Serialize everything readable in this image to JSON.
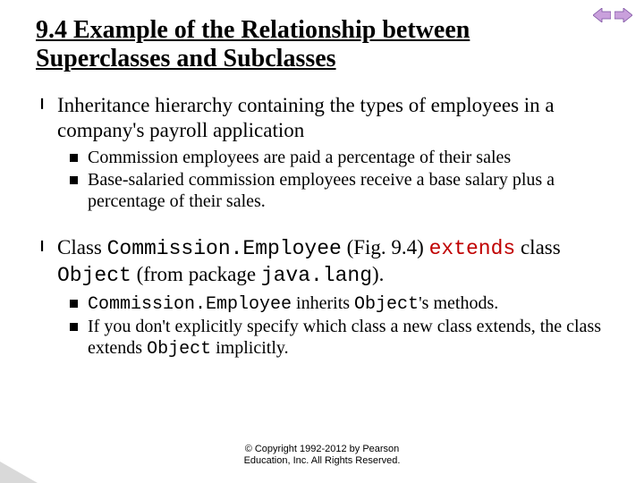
{
  "title": "9.4 Example of the Relationship between Superclasses and Subclasses",
  "items": [
    {
      "text_parts": [
        {
          "t": "Inheritance hierarchy containing the types of employees in a company's payroll application",
          "s": "n"
        }
      ],
      "subs": [
        {
          "parts": [
            {
              "t": "Commission employees are paid a percentage of their sales",
              "s": "n"
            }
          ]
        },
        {
          "parts": [
            {
              "t": "Base-salaried commission employees receive a base salary plus a percentage of their sales.",
              "s": "n"
            }
          ]
        }
      ]
    },
    {
      "text_parts": [
        {
          "t": "Class ",
          "s": "n"
        },
        {
          "t": "Commission.Employee",
          "s": "c"
        },
        {
          "t": " (Fig. 9.4) ",
          "s": "n"
        },
        {
          "t": "extends",
          "s": "k"
        },
        {
          "t": " class ",
          "s": "n"
        },
        {
          "t": "Object",
          "s": "c"
        },
        {
          "t": " (from package ",
          "s": "n"
        },
        {
          "t": "java.lang",
          "s": "c"
        },
        {
          "t": ").",
          "s": "n"
        }
      ],
      "subs": [
        {
          "parts": [
            {
              "t": "Commission.Employee",
              "s": "c"
            },
            {
              "t": " inherits ",
              "s": "n"
            },
            {
              "t": "Object",
              "s": "c"
            },
            {
              "t": "'s methods.",
              "s": "n"
            }
          ]
        },
        {
          "parts": [
            {
              "t": "If you don't explicitly specify which class a new class extends, the class extends ",
              "s": "n"
            },
            {
              "t": "Object",
              "s": "c"
            },
            {
              "t": " implicitly.",
              "s": "n"
            }
          ]
        }
      ]
    }
  ],
  "footer": {
    "line1": "© Copyright 1992-2012 by Pearson",
    "line2": "Education, Inc. All Rights Reserved."
  },
  "colors": {
    "keyword": "#c00000",
    "nav_fill": "#c9a0dc",
    "nav_stroke": "#7a4fa0"
  }
}
